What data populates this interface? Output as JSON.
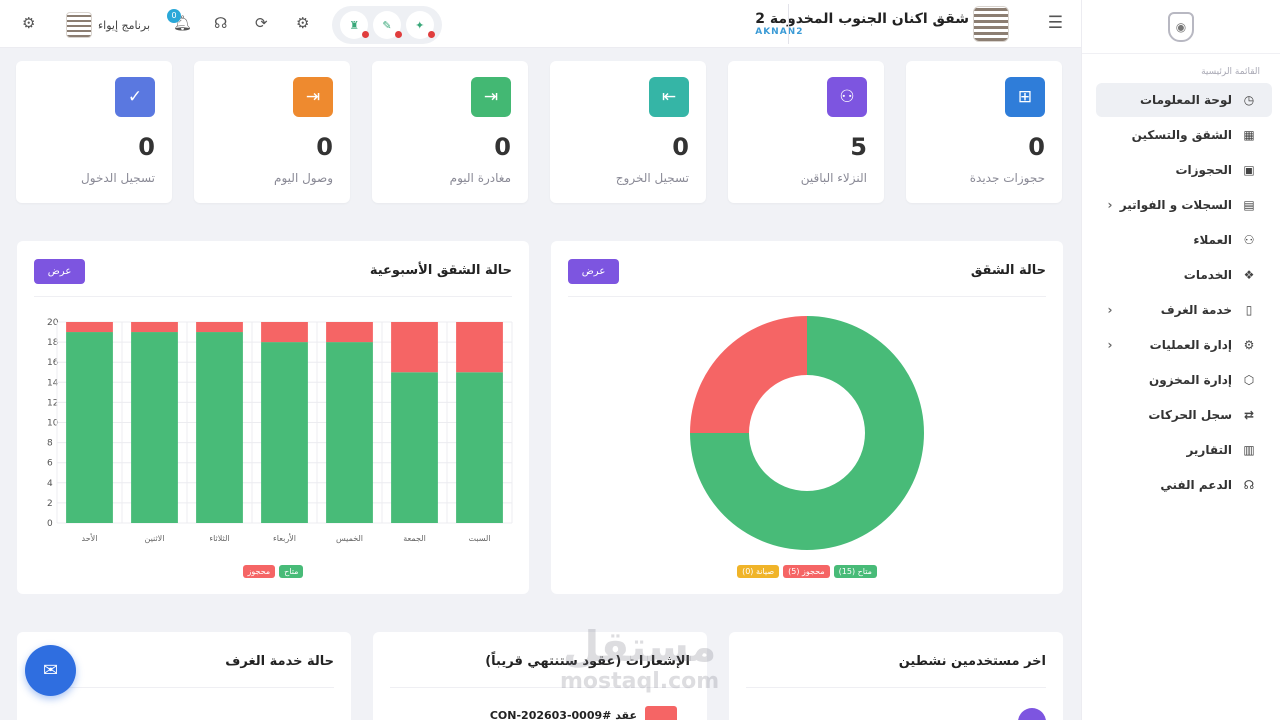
{
  "sidebar": {
    "section": "القائمة الرئيسية",
    "items": [
      {
        "label": "لوحة المعلومات",
        "icon": "dashboard-icon",
        "glyph": "◷",
        "active": true,
        "chevron": false
      },
      {
        "label": "الشقق والتسكين",
        "icon": "building-icon",
        "glyph": "▦",
        "chevron": false
      },
      {
        "label": "الحجوزات",
        "icon": "calendar-check-icon",
        "glyph": "▣",
        "chevron": false
      },
      {
        "label": "السجلات و الفواتير",
        "icon": "invoice-icon",
        "glyph": "▤",
        "chevron": true
      },
      {
        "label": "العملاء",
        "icon": "users-icon",
        "glyph": "⚇",
        "chevron": false
      },
      {
        "label": "الخدمات",
        "icon": "services-icon",
        "glyph": "❖",
        "chevron": false
      },
      {
        "label": "خدمة الغرف",
        "icon": "room-service-icon",
        "glyph": "▯",
        "chevron": true
      },
      {
        "label": "إدارة العمليات",
        "icon": "gear-icon",
        "glyph": "⚙",
        "chevron": true
      },
      {
        "label": "إدارة المخزون",
        "icon": "box-icon",
        "glyph": "⬡",
        "chevron": false
      },
      {
        "label": "سجل الحركات",
        "icon": "transfer-icon",
        "glyph": "⇄",
        "chevron": false
      },
      {
        "label": "التقارير",
        "icon": "bar-chart-icon",
        "glyph": "▥",
        "chevron": false
      },
      {
        "label": "الدعم الفني",
        "icon": "headset-icon",
        "glyph": "☊",
        "chevron": false
      }
    ]
  },
  "topbar": {
    "brand_name": "شقق اكنان الجنوب المخدومة 2",
    "brand_code": "AKNAN2",
    "program_label": "برنامج إيواء",
    "notification_count": "0"
  },
  "stats": [
    {
      "value": "0",
      "label": "حجوزات جديدة",
      "color": "#2f7dd9",
      "icon": "calendar-plus-icon",
      "glyph": "⊞"
    },
    {
      "value": "5",
      "label": "النزلاء الباقين",
      "color": "#7d55e0",
      "icon": "guests-icon",
      "glyph": "⚇"
    },
    {
      "value": "0",
      "label": "تسجيل الخروج",
      "color": "#35b5a6",
      "icon": "checkout-icon",
      "glyph": "⇤"
    },
    {
      "value": "0",
      "label": "مغادرة اليوم",
      "color": "#43b873",
      "icon": "departure-icon",
      "glyph": "⇥"
    },
    {
      "value": "0",
      "label": "وصول اليوم",
      "color": "#ee8a2f",
      "icon": "arrival-icon",
      "glyph": "⇥"
    },
    {
      "value": "0",
      "label": "تسجيل الدخول",
      "color": "#5a78e0",
      "icon": "check-circle-icon",
      "glyph": "✓"
    }
  ],
  "panels": {
    "apartment_status": {
      "title": "حالة الشقق",
      "button": "عرض"
    },
    "weekly_status": {
      "title": "حالة الشقق الأسبوعية",
      "button": "عرض"
    },
    "recent_users": {
      "title": "اخر مستخدمين نشطين"
    },
    "notifications": {
      "title": "الإشعارات (عقود ستنتهي قريباً)",
      "contract": "عقد #CON-202603-0009"
    },
    "room_service": {
      "title": "حالة خدمة الغرف"
    }
  },
  "colors": {
    "available": "#48bb78",
    "booked": "#f56565",
    "maintenance": "#f0b429"
  },
  "chart_data": [
    {
      "type": "pie",
      "categories": [
        "متاح (15)",
        "محجوز (5)",
        "صيانة (0)"
      ],
      "values": [
        15,
        5,
        0
      ]
    },
    {
      "type": "bar",
      "categories": [
        "الأحد",
        "الاثنين",
        "الثلاثاء",
        "الأربعاء",
        "الخميس",
        "الجمعة",
        "السبت"
      ],
      "series": [
        {
          "name": "متاح",
          "values": [
            19,
            19,
            19,
            18,
            18,
            15,
            15
          ]
        },
        {
          "name": "محجوز",
          "values": [
            1,
            1,
            1,
            2,
            2,
            5,
            5
          ]
        }
      ],
      "ylim": [
        0,
        20
      ],
      "yticks": [
        0,
        2,
        4,
        6,
        8,
        10,
        12,
        14,
        16,
        18,
        20
      ],
      "legend": [
        "متاح",
        "محجوز"
      ],
      "grid": true
    }
  ],
  "watermark": {
    "arabic": "مستقل",
    "latin": "mostaql.com"
  }
}
